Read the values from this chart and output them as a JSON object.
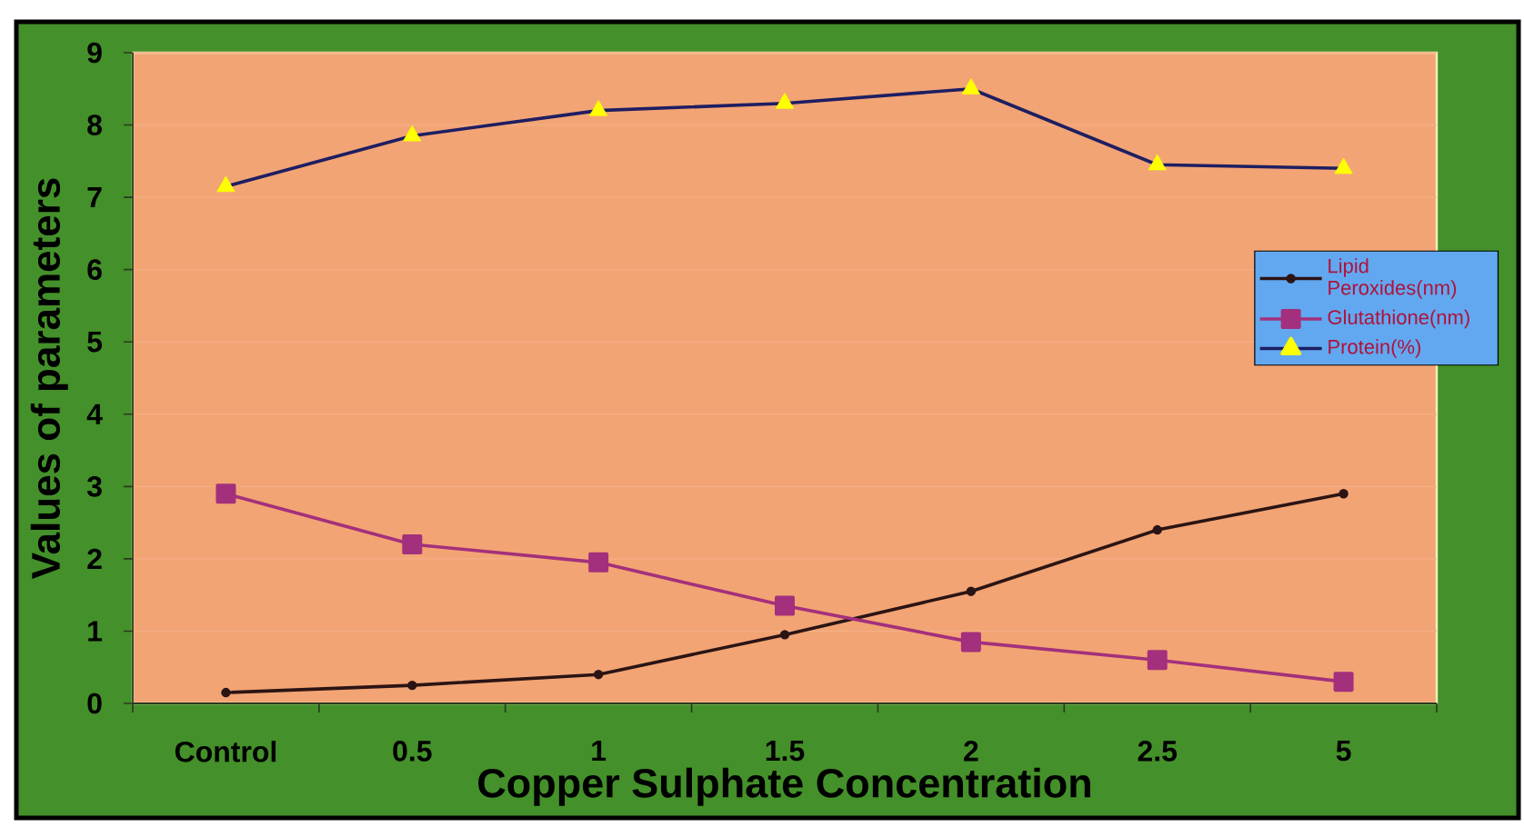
{
  "chart_data": {
    "type": "line",
    "xlabel": "Copper Sulphate Concentration",
    "ylabel": "Values of parameters",
    "categories": [
      "Control",
      "0.5",
      "1",
      "1.5",
      "2",
      "2.5",
      "5"
    ],
    "series": [
      {
        "name": "Lipid Peroxides(nm)",
        "color": "#2b1414",
        "marker": "circle",
        "values": [
          0.15,
          0.25,
          0.4,
          0.95,
          1.55,
          2.4,
          2.9
        ]
      },
      {
        "name": "Glutathione(nm)",
        "color": "#a3307c",
        "marker": "square",
        "values": [
          2.9,
          2.2,
          1.95,
          1.35,
          0.85,
          0.6,
          0.3
        ]
      },
      {
        "name": "Protein(%)",
        "color": "#1e1e62",
        "marker": "triangle",
        "colors": [
          "#ffff00",
          "#ffff00",
          "#ffff00",
          "#ffff00",
          "#ffff00",
          "#ffff00",
          "#ffff00"
        ],
        "values": [
          7.15,
          7.85,
          8.2,
          8.3,
          8.5,
          7.45,
          7.4
        ]
      }
    ],
    "ylim": [
      0,
      9
    ],
    "yticks": [
      0,
      1,
      2,
      3,
      4,
      5,
      6,
      7,
      8,
      9
    ],
    "grid": "y",
    "legend": "right"
  }
}
